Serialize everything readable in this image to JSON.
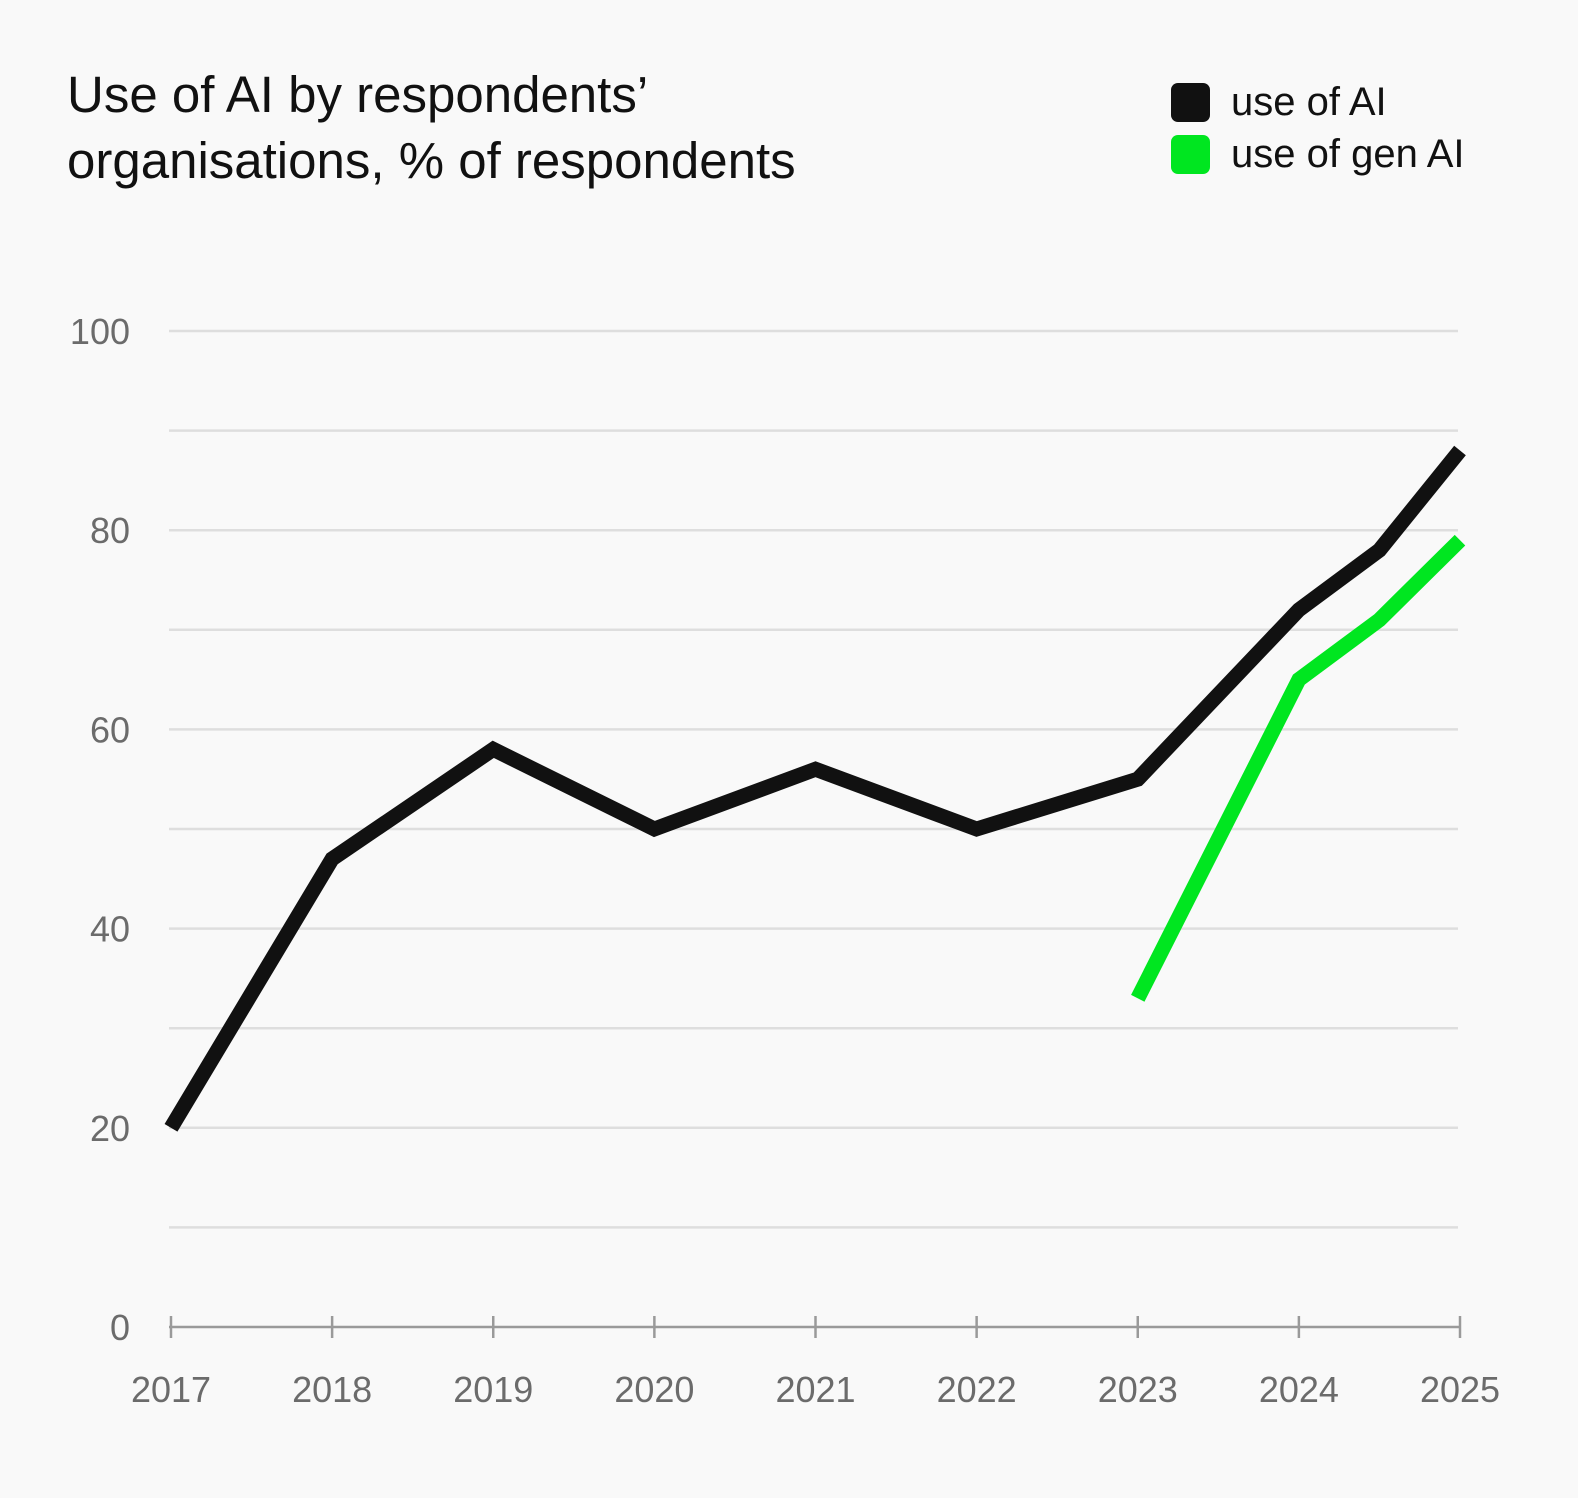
{
  "chart_data": {
    "type": "line",
    "title": "Use of AI by respondents’ organisations, % of respondents",
    "xlabel": "",
    "ylabel": "",
    "ylim": [
      0,
      100
    ],
    "xlim": [
      2017,
      2025
    ],
    "x_ticks": [
      "2017",
      "2018",
      "2019",
      "2020",
      "2021",
      "2022",
      "2023",
      "2024",
      "2025"
    ],
    "y_ticks": [
      "0",
      "20",
      "40",
      "60",
      "80",
      "100"
    ],
    "grid": true,
    "legend_position": "top-right",
    "series": [
      {
        "name": "use of AI",
        "color": "#111111",
        "x": [
          2017,
          2018,
          2019,
          2020,
          2021,
          2022,
          2023,
          2024,
          2024.5,
          2025
        ],
        "values": [
          20,
          47,
          58,
          50,
          56,
          50,
          55,
          72,
          78,
          88
        ]
      },
      {
        "name": "use of gen AI",
        "color": "#00e620",
        "x": [
          2023,
          2024,
          2024.5,
          2025
        ],
        "values": [
          33,
          65,
          71,
          79
        ]
      }
    ]
  }
}
